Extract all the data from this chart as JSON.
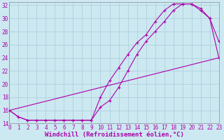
{
  "xlabel": "Windchill (Refroidissement éolien,°C)",
  "background_color": "#cce8f0",
  "grid_color": "#aaccdd",
  "line_color": "#aa00aa",
  "x_min": 0,
  "x_max": 23,
  "y_min": 14,
  "y_max": 32.5,
  "line1_x": [
    0,
    1,
    2,
    3,
    4,
    5,
    6,
    7,
    8,
    9,
    10,
    11,
    12,
    13,
    14,
    15,
    16,
    17,
    18,
    19,
    20,
    21,
    22,
    23
  ],
  "line1_y": [
    16.0,
    15.0,
    14.5,
    14.5,
    14.5,
    14.5,
    14.5,
    14.5,
    14.5,
    14.5,
    16.5,
    17.5,
    19.5,
    22.0,
    24.5,
    26.5,
    28.0,
    29.5,
    31.2,
    32.2,
    32.2,
    31.2,
    30.0,
    24.0
  ],
  "line2_x": [
    0,
    1,
    2,
    3,
    4,
    5,
    6,
    7,
    8,
    9,
    10,
    11,
    12,
    13,
    14,
    15,
    16,
    17,
    18,
    19,
    20,
    21,
    22,
    23
  ],
  "line2_y": [
    16.0,
    15.0,
    14.5,
    14.5,
    14.5,
    14.5,
    14.5,
    14.5,
    14.5,
    14.5,
    18.0,
    20.5,
    22.5,
    24.5,
    26.3,
    27.5,
    29.5,
    31.2,
    32.2,
    32.2,
    32.2,
    31.5,
    30.0,
    26.5
  ],
  "line3_x": [
    0,
    23
  ],
  "line3_y": [
    16.0,
    24.0
  ],
  "x_ticks": [
    0,
    1,
    2,
    3,
    4,
    5,
    6,
    7,
    8,
    9,
    10,
    11,
    12,
    13,
    14,
    15,
    16,
    17,
    18,
    19,
    20,
    21,
    22,
    23
  ],
  "y_ticks": [
    14,
    16,
    18,
    20,
    22,
    24,
    26,
    28,
    30,
    32
  ],
  "tick_fontsize": 5.5,
  "xlabel_fontsize": 6.5
}
